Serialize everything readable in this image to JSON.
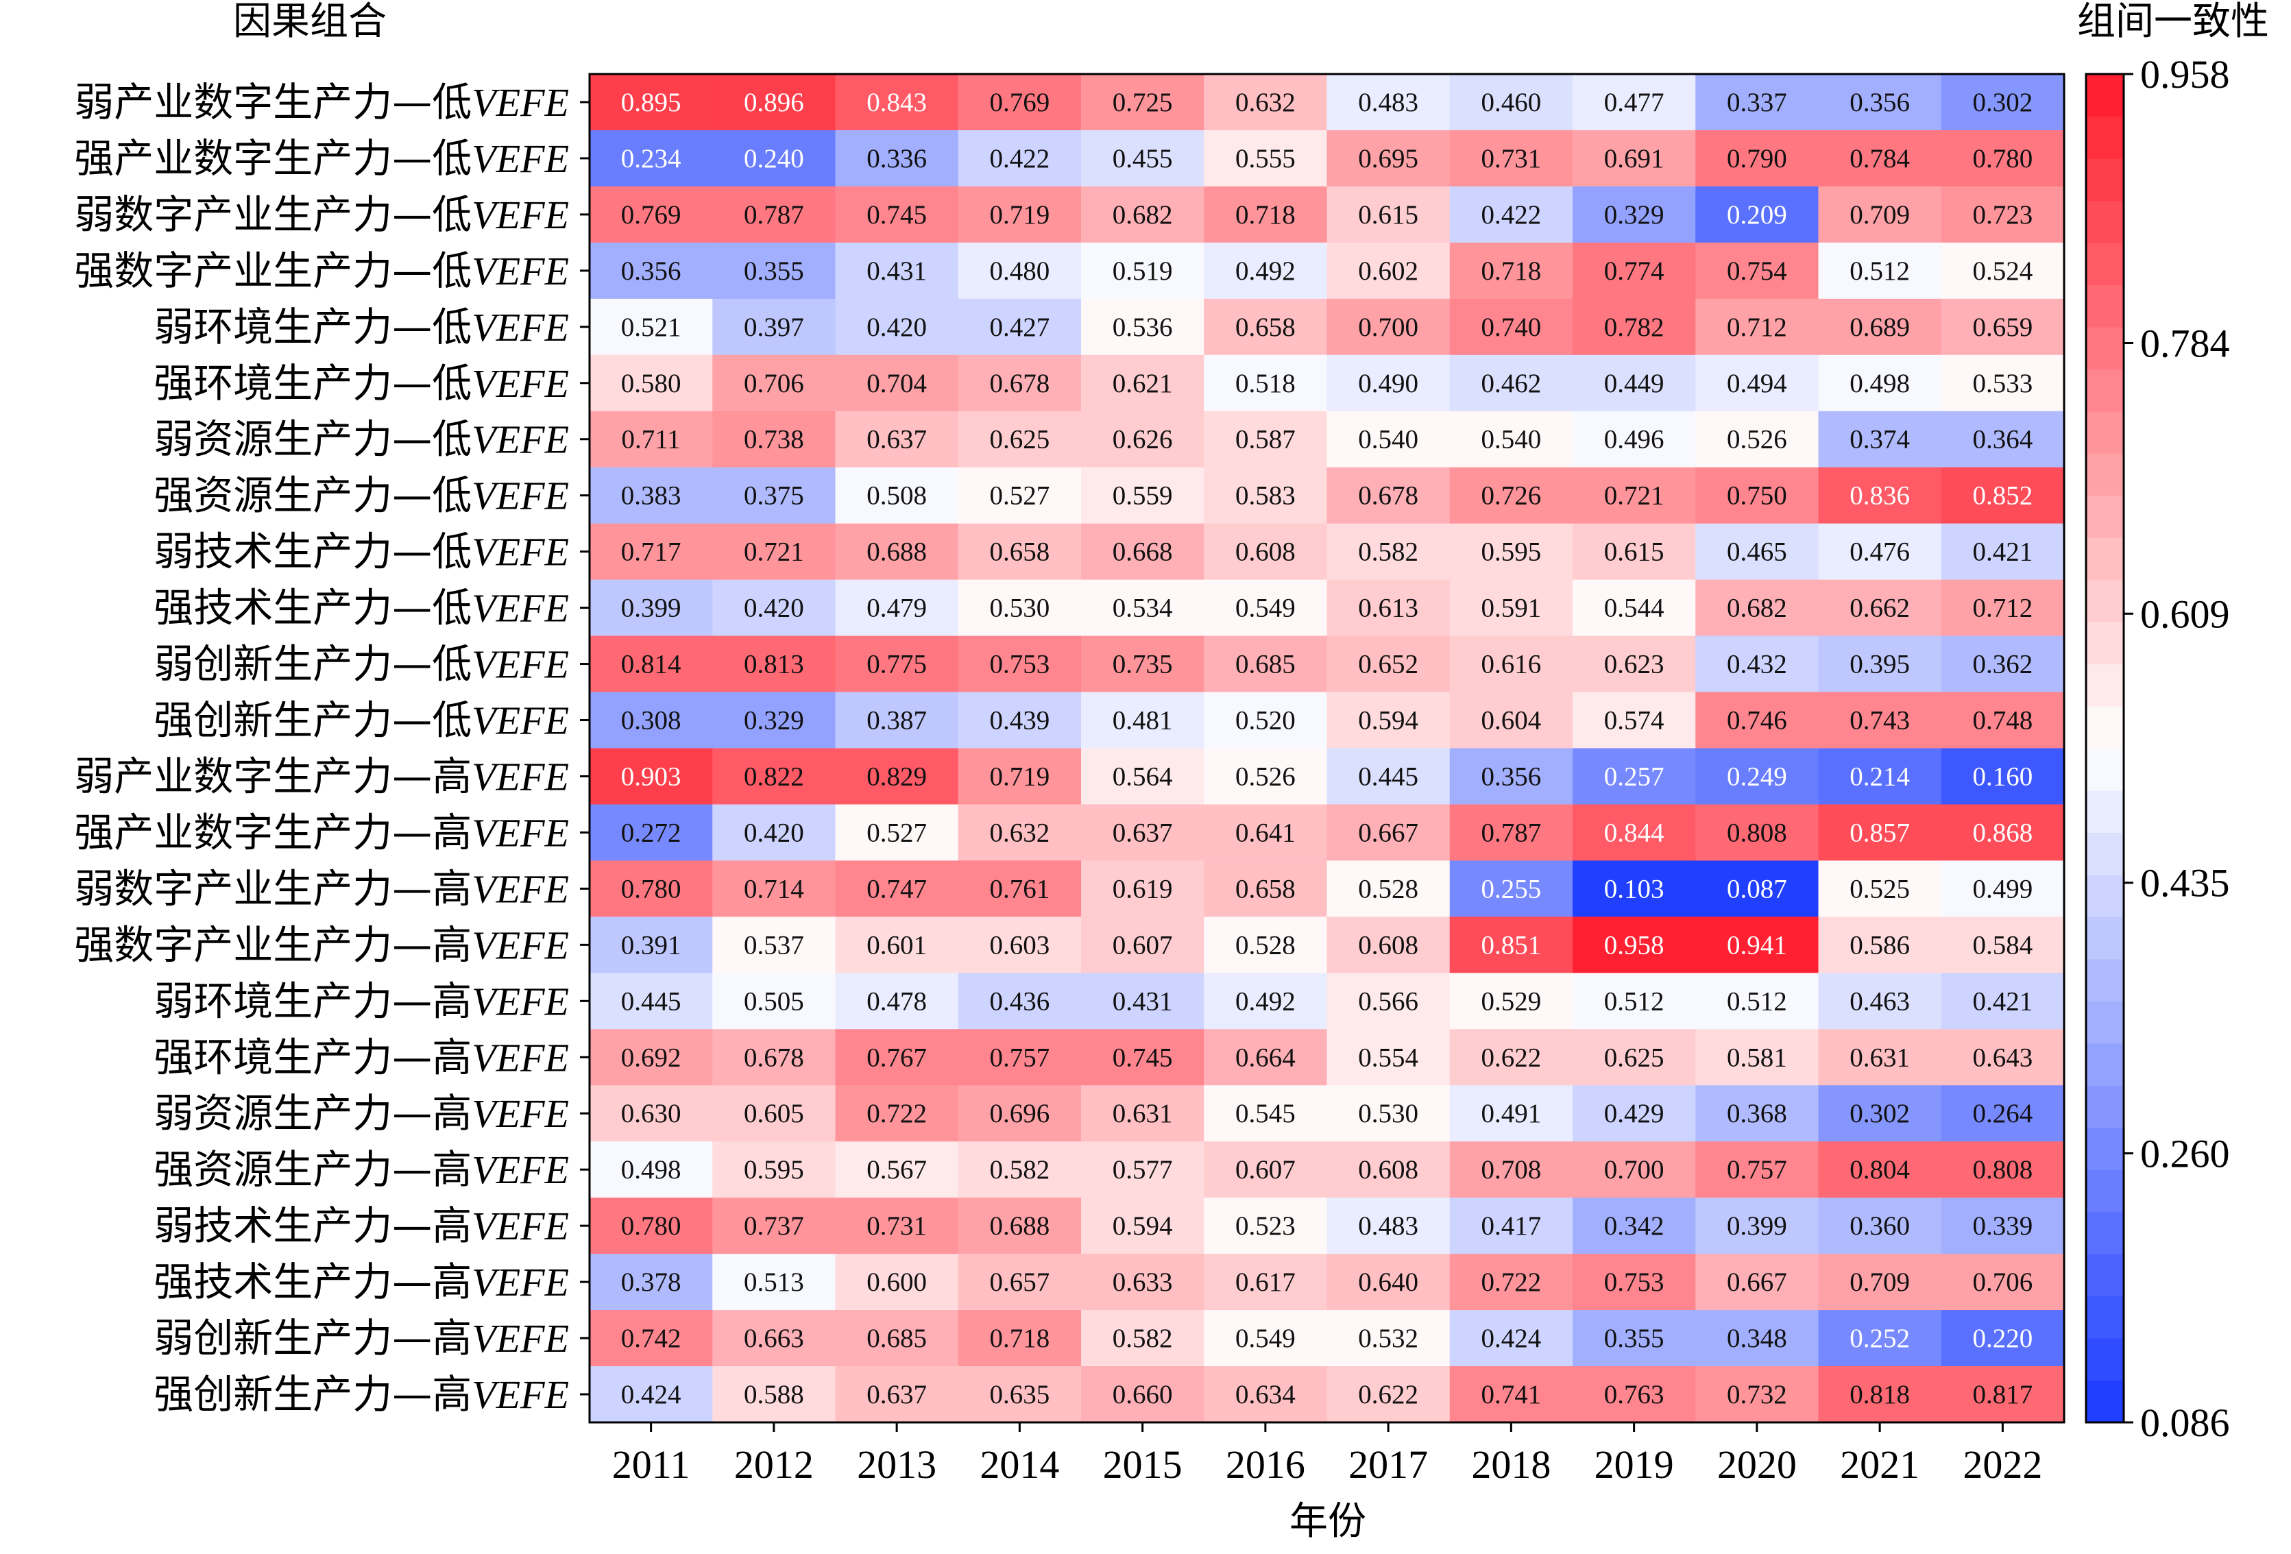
{
  "chart_data": {
    "type": "heatmap",
    "title": "",
    "row_axis_title": "因果组合",
    "xlabel": "年份",
    "colorbar_title": "组间一致性",
    "colorbar_ticks": [
      "0.958",
      "0.784",
      "0.609",
      "0.435",
      "0.260",
      "0.086"
    ],
    "colorbar_range": [
      0.086,
      0.958
    ],
    "colors": {
      "low": "#1a39ff",
      "mid": "#ffffff",
      "high": "#ff1a2a"
    },
    "columns": [
      "2011",
      "2012",
      "2013",
      "2014",
      "2015",
      "2016",
      "2017",
      "2018",
      "2019",
      "2020",
      "2021",
      "2022"
    ],
    "rows": [
      {
        "prefix": "弱产业数字生产力—低",
        "suffix": "VEFE"
      },
      {
        "prefix": "强产业数字生产力—低",
        "suffix": "VEFE"
      },
      {
        "prefix": "弱数字产业生产力—低",
        "suffix": "VEFE"
      },
      {
        "prefix": "强数字产业生产力—低",
        "suffix": "VEFE"
      },
      {
        "prefix": "弱环境生产力—低",
        "suffix": "VEFE"
      },
      {
        "prefix": "强环境生产力—低",
        "suffix": "VEFE"
      },
      {
        "prefix": "弱资源生产力—低",
        "suffix": "VEFE"
      },
      {
        "prefix": "强资源生产力—低",
        "suffix": "VEFE"
      },
      {
        "prefix": "弱技术生产力—低",
        "suffix": "VEFE"
      },
      {
        "prefix": "强技术生产力—低",
        "suffix": "VEFE"
      },
      {
        "prefix": "弱创新生产力—低",
        "suffix": "VEFE"
      },
      {
        "prefix": "强创新生产力—低",
        "suffix": "VEFE"
      },
      {
        "prefix": "弱产业数字生产力—高",
        "suffix": "VEFE"
      },
      {
        "prefix": "强产业数字生产力—高",
        "suffix": "VEFE"
      },
      {
        "prefix": "弱数字产业生产力—高",
        "suffix": "VEFE"
      },
      {
        "prefix": "强数字产业生产力—高",
        "suffix": "VEFE"
      },
      {
        "prefix": "弱环境生产力—高",
        "suffix": "VEFE"
      },
      {
        "prefix": "强环境生产力—高",
        "suffix": "VEFE"
      },
      {
        "prefix": "弱资源生产力—高",
        "suffix": "VEFE"
      },
      {
        "prefix": "强资源生产力—高",
        "suffix": "VEFE"
      },
      {
        "prefix": "弱技术生产力—高",
        "suffix": "VEFE"
      },
      {
        "prefix": "强技术生产力—高",
        "suffix": "VEFE"
      },
      {
        "prefix": "弱创新生产力—高",
        "suffix": "VEFE"
      },
      {
        "prefix": "强创新生产力—高",
        "suffix": "VEFE"
      }
    ],
    "values": [
      [
        "0.895",
        "0.896",
        "0.843",
        "0.769",
        "0.725",
        "0.632",
        "0.483",
        "0.460",
        "0.477",
        "0.337",
        "0.356",
        "0.302"
      ],
      [
        "0.234",
        "0.240",
        "0.336",
        "0.422",
        "0.455",
        "0.555",
        "0.695",
        "0.731",
        "0.691",
        "0.790",
        "0.784",
        "0.780"
      ],
      [
        "0.769",
        "0.787",
        "0.745",
        "0.719",
        "0.682",
        "0.718",
        "0.615",
        "0.422",
        "0.329",
        "0.209",
        "0.709",
        "0.723"
      ],
      [
        "0.356",
        "0.355",
        "0.431",
        "0.480",
        "0.519",
        "0.492",
        "0.602",
        "0.718",
        "0.774",
        "0.754",
        "0.512",
        "0.524"
      ],
      [
        "0.521",
        "0.397",
        "0.420",
        "0.427",
        "0.536",
        "0.658",
        "0.700",
        "0.740",
        "0.782",
        "0.712",
        "0.689",
        "0.659"
      ],
      [
        "0.580",
        "0.706",
        "0.704",
        "0.678",
        "0.621",
        "0.518",
        "0.490",
        "0.462",
        "0.449",
        "0.494",
        "0.498",
        "0.533"
      ],
      [
        "0.711",
        "0.738",
        "0.637",
        "0.625",
        "0.626",
        "0.587",
        "0.540",
        "0.540",
        "0.496",
        "0.526",
        "0.374",
        "0.364"
      ],
      [
        "0.383",
        "0.375",
        "0.508",
        "0.527",
        "0.559",
        "0.583",
        "0.678",
        "0.726",
        "0.721",
        "0.750",
        "0.836",
        "0.852"
      ],
      [
        "0.717",
        "0.721",
        "0.688",
        "0.658",
        "0.668",
        "0.608",
        "0.582",
        "0.595",
        "0.615",
        "0.465",
        "0.476",
        "0.421"
      ],
      [
        "0.399",
        "0.420",
        "0.479",
        "0.530",
        "0.534",
        "0.549",
        "0.613",
        "0.591",
        "0.544",
        "0.682",
        "0.662",
        "0.712"
      ],
      [
        "0.814",
        "0.813",
        "0.775",
        "0.753",
        "0.735",
        "0.685",
        "0.652",
        "0.616",
        "0.623",
        "0.432",
        "0.395",
        "0.362"
      ],
      [
        "0.308",
        "0.329",
        "0.387",
        "0.439",
        "0.481",
        "0.520",
        "0.594",
        "0.604",
        "0.574",
        "0.746",
        "0.743",
        "0.748"
      ],
      [
        "0.903",
        "0.822",
        "0.829",
        "0.719",
        "0.564",
        "0.526",
        "0.445",
        "0.356",
        "0.257",
        "0.249",
        "0.214",
        "0.160"
      ],
      [
        "0.272",
        "0.420",
        "0.527",
        "0.632",
        "0.637",
        "0.641",
        "0.667",
        "0.787",
        "0.844",
        "0.808",
        "0.857",
        "0.868"
      ],
      [
        "0.780",
        "0.714",
        "0.747",
        "0.761",
        "0.619",
        "0.658",
        "0.528",
        "0.255",
        "0.103",
        "0.087",
        "0.525",
        "0.499"
      ],
      [
        "0.391",
        "0.537",
        "0.601",
        "0.603",
        "0.607",
        "0.528",
        "0.608",
        "0.851",
        "0.958",
        "0.941",
        "0.586",
        "0.584"
      ],
      [
        "0.445",
        "0.505",
        "0.478",
        "0.436",
        "0.431",
        "0.492",
        "0.566",
        "0.529",
        "0.512",
        "0.512",
        "0.463",
        "0.421"
      ],
      [
        "0.692",
        "0.678",
        "0.767",
        "0.757",
        "0.745",
        "0.664",
        "0.554",
        "0.622",
        "0.625",
        "0.581",
        "0.631",
        "0.643"
      ],
      [
        "0.630",
        "0.605",
        "0.722",
        "0.696",
        "0.631",
        "0.545",
        "0.530",
        "0.491",
        "0.429",
        "0.368",
        "0.302",
        "0.264"
      ],
      [
        "0.498",
        "0.595",
        "0.567",
        "0.582",
        "0.577",
        "0.607",
        "0.608",
        "0.708",
        "0.700",
        "0.757",
        "0.804",
        "0.808"
      ],
      [
        "0.780",
        "0.737",
        "0.731",
        "0.688",
        "0.594",
        "0.523",
        "0.483",
        "0.417",
        "0.342",
        "0.399",
        "0.360",
        "0.339"
      ],
      [
        "0.378",
        "0.513",
        "0.600",
        "0.657",
        "0.633",
        "0.617",
        "0.640",
        "0.722",
        "0.753",
        "0.667",
        "0.709",
        "0.706"
      ],
      [
        "0.742",
        "0.663",
        "0.685",
        "0.718",
        "0.582",
        "0.549",
        "0.532",
        "0.424",
        "0.355",
        "0.348",
        "0.252",
        "0.220"
      ],
      [
        "0.424",
        "0.588",
        "0.637",
        "0.635",
        "0.660",
        "0.634",
        "0.622",
        "0.741",
        "0.763",
        "0.732",
        "0.818",
        "0.817"
      ]
    ]
  }
}
